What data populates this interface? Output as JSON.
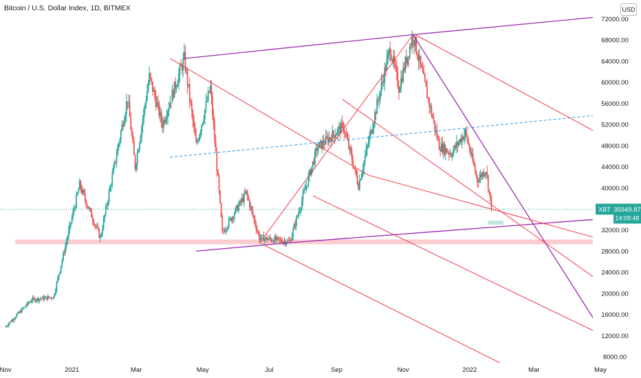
{
  "header": {
    "title": "Bitcoin / U.S. Dollar Index, 1D, BITMEX",
    "currency_button": "USD"
  },
  "price_tag": {
    "symbol": "XBT",
    "price": "35949.87",
    "countdown": "14:09:48"
  },
  "colors": {
    "up": "#26a69a",
    "down": "#ef5350",
    "purple": "#9c27b0",
    "red_line": "#f23645",
    "dotted_blue": "#2196f3",
    "support_zone": "#f8bbc0",
    "tag_bg": "#26a69a"
  },
  "chart_data": {
    "type": "candlestick",
    "x_ticks": [
      "Nov",
      "2021",
      "Mar",
      "May",
      "Jul",
      "Sep",
      "Nov",
      "2022",
      "Mar",
      "May"
    ],
    "y_ticks": [
      72000,
      68000,
      64000,
      60000,
      56000,
      52000,
      48000,
      44000,
      40000,
      32000,
      28000,
      24000,
      20000,
      16000,
      12000,
      8000
    ],
    "y_tick_labels": [
      "72000.00",
      "68000.00",
      "64000.00",
      "60000.00",
      "56000.00",
      "52000.00",
      "48000.00",
      "44000.00",
      "40000.00",
      "32000.00",
      "28000.00",
      "24000.00",
      "20000.00",
      "16000.00",
      "12000.00",
      "8000.00"
    ],
    "ylim": [
      7000,
      74500
    ],
    "last_price": 35949.87,
    "price_path": [
      [
        "2020-11-01",
        13700
      ],
      [
        "2020-11-25",
        18800
      ],
      [
        "2020-12-15",
        19300
      ],
      [
        "2021-01-08",
        40500
      ],
      [
        "2021-01-27",
        30500
      ],
      [
        "2021-02-21",
        57000
      ],
      [
        "2021-02-28",
        44000
      ],
      [
        "2021-03-13",
        61000
      ],
      [
        "2021-03-25",
        52000
      ],
      [
        "2021-04-14",
        64500
      ],
      [
        "2021-04-25",
        48000
      ],
      [
        "2021-05-08",
        59000
      ],
      [
        "2021-05-19",
        31500
      ],
      [
        "2021-06-10",
        39000
      ],
      [
        "2021-06-22",
        30500
      ],
      [
        "2021-07-20",
        29800
      ],
      [
        "2021-08-14",
        47500
      ],
      [
        "2021-09-07",
        51700
      ],
      [
        "2021-09-21",
        40500
      ],
      [
        "2021-10-20",
        66500
      ],
      [
        "2021-10-28",
        59000
      ],
      [
        "2021-11-10",
        69000
      ],
      [
        "2021-12-04",
        48000
      ],
      [
        "2021-12-15",
        46500
      ],
      [
        "2021-12-28",
        50500
      ],
      [
        "2022-01-08",
        41500
      ],
      [
        "2022-01-16",
        43500
      ],
      [
        "2022-01-21",
        36000
      ]
    ],
    "lines": [
      {
        "name": "upper-purple-trendline",
        "color": "purple",
        "points": [
          [
            "2021-04-14",
            64500
          ],
          [
            "2021-11-10",
            69000
          ],
          [
            "2022-05-20",
            72800
          ]
        ]
      },
      {
        "name": "lower-purple-trendline",
        "color": "purple",
        "points": [
          [
            "2021-04-25",
            28000
          ],
          [
            "2021-07-20",
            29600
          ],
          [
            "2022-05-20",
            34400
          ]
        ]
      },
      {
        "name": "steep-purple-line",
        "color": "purple",
        "points": [
          [
            "2021-11-10",
            69000
          ],
          [
            "2022-05-20",
            7000
          ]
        ]
      },
      {
        "name": "red-rise-line",
        "color": "red_line",
        "points": [
          [
            "2021-06-22",
            29500
          ],
          [
            "2021-11-10",
            69000
          ]
        ]
      },
      {
        "name": "red-channel-top",
        "color": "red_line",
        "points": [
          [
            "2021-04-01",
            64500
          ],
          [
            "2021-09-30",
            42400
          ],
          [
            "2022-05-20",
            29200
          ]
        ]
      },
      {
        "name": "red-channel-2",
        "color": "red_line",
        "points": [
          [
            "2021-09-06",
            56800
          ],
          [
            "2022-05-20",
            19400
          ]
        ]
      },
      {
        "name": "red-channel-3",
        "color": "red_line",
        "points": [
          [
            "2021-08-10",
            38500
          ],
          [
            "2022-05-20",
            10400
          ]
        ]
      },
      {
        "name": "red-channel-4",
        "color": "red_line",
        "points": [
          [
            "2021-06-24",
            29400
          ],
          [
            "2022-02-01",
            6500
          ]
        ]
      },
      {
        "name": "red-upper-right",
        "color": "red_line",
        "points": [
          [
            "2021-11-12",
            69000
          ],
          [
            "2022-05-20",
            48000
          ]
        ]
      }
    ],
    "dashed_line": {
      "name": "dotted-midline",
      "points": [
        [
          "2021-04-01",
          45800
        ],
        [
          "2022-05-20",
          54200
        ]
      ]
    },
    "support_zone": {
      "from": "2020-11-10",
      "to": "2022-05-15",
      "low": 29300,
      "high": 30200
    },
    "small_box": {
      "from": "2022-01-18",
      "to": "2022-02-01",
      "low": 33000,
      "high": 33800
    }
  }
}
